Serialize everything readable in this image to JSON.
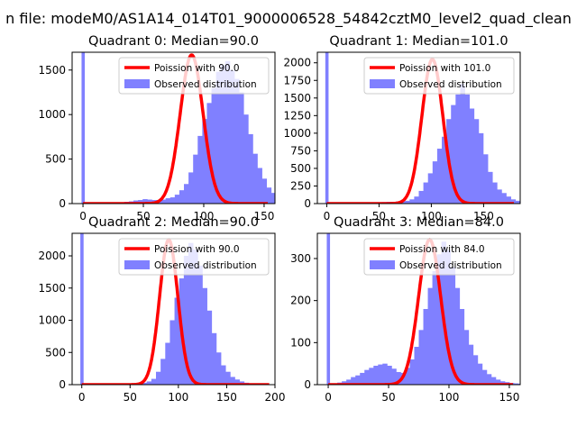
{
  "suptitle": "n file: modeM0/AS1A14_014T01_9000006528_54842cztM0_level2_quad_clean",
  "colors": {
    "histogram": "#8080ff",
    "poisson": "#ff0000",
    "axes": "#000000",
    "background": "#ffffff",
    "legend_border": "#cccccc"
  },
  "chart_data": [
    {
      "type": "histogram",
      "title": "Quadrant 0: Median=90.0",
      "median": 90.0,
      "xlim": [
        -9,
        159
      ],
      "ylim": [
        0,
        1700
      ],
      "xticks": [
        0,
        50,
        100,
        150
      ],
      "yticks": [
        0,
        500,
        1000,
        1500
      ],
      "legend": [
        "Poission with 90.0",
        "Observed distribution"
      ],
      "legend_loc": "upper right",
      "bin_width": 3.8,
      "outlier_bar": {
        "x": 0,
        "count": 1700
      },
      "bins": {
        "start": 0,
        "counts": [
          0,
          5,
          8,
          10,
          12,
          12,
          12,
          12,
          15,
          20,
          25,
          35,
          40,
          50,
          45,
          40,
          40,
          45,
          60,
          70,
          100,
          150,
          220,
          350,
          550,
          760,
          950,
          1130,
          1300,
          1480,
          1560,
          1600,
          1500,
          1400,
          1250,
          1000,
          780,
          560,
          400,
          280,
          180,
          120,
          80,
          60,
          40,
          30,
          20,
          12,
          10,
          6,
          4,
          3,
          2,
          2,
          1,
          1,
          0,
          0,
          0,
          0
        ]
      },
      "poisson_curve": {
        "mean": 90.0,
        "peak": 1670
      }
    },
    {
      "type": "histogram",
      "title": "Quadrant 1: Median=101.0",
      "median": 101.0,
      "xlim": [
        -9,
        185
      ],
      "ylim": [
        0,
        2150
      ],
      "xticks": [
        0,
        50,
        100,
        150
      ],
      "yticks": [
        0,
        250,
        500,
        750,
        1000,
        1250,
        1500,
        1750,
        2000
      ],
      "legend": [
        "Poission with 101.0",
        "Observed distribution"
      ],
      "legend_loc": "upper right",
      "bin_width": 4.4,
      "outlier_bar": {
        "x": 0,
        "count": 2150
      },
      "bins": {
        "start": 0,
        "counts": [
          0,
          5,
          6,
          8,
          10,
          10,
          10,
          10,
          12,
          15,
          18,
          20,
          22,
          25,
          25,
          30,
          30,
          40,
          60,
          100,
          180,
          300,
          430,
          600,
          780,
          950,
          1200,
          1400,
          1550,
          1700,
          1550,
          1350,
          1200,
          1000,
          700,
          450,
          300,
          200,
          150,
          100,
          60,
          40,
          25,
          15,
          10,
          5,
          3,
          2,
          1,
          1,
          0
        ]
      },
      "poisson_curve": {
        "mean": 101.0,
        "peak": 2050
      }
    },
    {
      "type": "histogram",
      "title": "Quadrant 2: Median=90.0",
      "median": 90.0,
      "xlim": [
        -10,
        200
      ],
      "ylim": [
        0,
        2350
      ],
      "xticks": [
        0,
        50,
        100,
        150,
        200
      ],
      "yticks": [
        0,
        500,
        1000,
        1500,
        2000
      ],
      "legend": [
        "Poission with 90.0",
        "Observed distribution"
      ],
      "legend_loc": "upper right",
      "bin_width": 4.8,
      "outlier_bar": {
        "x": 0,
        "count": 2350
      },
      "bins": {
        "start": 0,
        "counts": [
          0,
          3,
          5,
          5,
          6,
          6,
          8,
          8,
          10,
          10,
          12,
          15,
          20,
          30,
          50,
          90,
          200,
          400,
          650,
          1000,
          1350,
          1650,
          2000,
          2200,
          2100,
          1850,
          1500,
          1150,
          800,
          500,
          300,
          200,
          120,
          80,
          50,
          30,
          20,
          10,
          5,
          3,
          2,
          1,
          0
        ]
      },
      "poisson_curve": {
        "mean": 90.0,
        "peak": 2250
      }
    },
    {
      "type": "histogram",
      "title": "Quadrant 3: Median=84.0",
      "median": 84.0,
      "xlim": [
        -9,
        159
      ],
      "ylim": [
        0,
        360
      ],
      "xticks": [
        0,
        50,
        100,
        150
      ],
      "yticks": [
        0,
        100,
        200,
        300
      ],
      "legend": [
        "Poission with 84.0",
        "Observed distribution"
      ],
      "legend_loc": "upper right",
      "bin_width": 3.75,
      "outlier_bar": {
        "x": 0,
        "count": 360
      },
      "bins": {
        "start": 0,
        "counts": [
          0,
          3,
          5,
          8,
          12,
          18,
          22,
          28,
          35,
          40,
          45,
          48,
          50,
          45,
          38,
          30,
          28,
          40,
          60,
          90,
          130,
          180,
          230,
          270,
          310,
          340,
          320,
          280,
          230,
          180,
          130,
          95,
          70,
          50,
          35,
          25,
          18,
          12,
          8,
          6,
          4,
          3,
          2,
          1,
          0
        ]
      },
      "poisson_curve": {
        "mean": 84.0,
        "peak": 345
      }
    }
  ]
}
